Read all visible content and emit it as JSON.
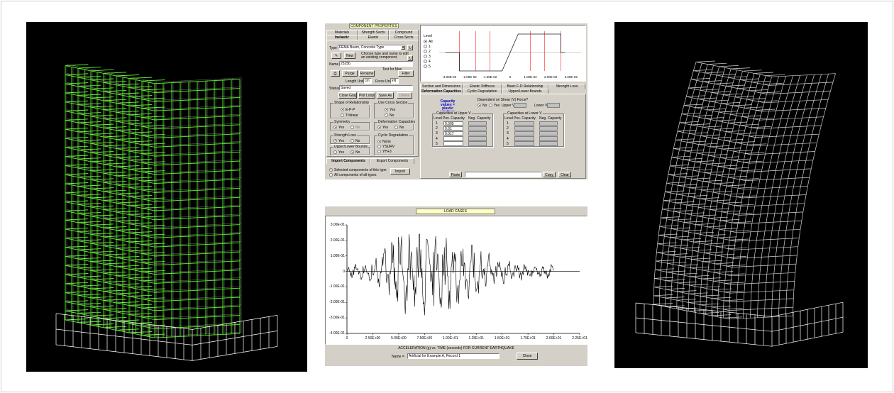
{
  "component_properties": {
    "title": "COMPONENT PROPERTIES",
    "tabs_row1": [
      "Materials",
      "Strength Sects",
      "Compound"
    ],
    "tabs_row2": [
      "Inelastic",
      "Elastic",
      "Cross Sects"
    ],
    "type_label": "Type",
    "type_value": "FEMA Beam, Concrete Type",
    "new_label": "New",
    "new_hint": "Choose type and name to edit an existing component.",
    "name_label": "Name",
    "name_value": "2525b",
    "test_for_max": "Test for Max",
    "purge": "Purge",
    "rename": "Rename",
    "filter": "Filter",
    "length_unit_label": "Length Unit",
    "length_unit_value": "cm",
    "force_unit_label": "Force Unit",
    "force_unit_value": "kN",
    "status_label": "Status",
    "status_value": "Saved",
    "close_graph": "Close Graph",
    "plot_loops": "Plot Loops",
    "save_as": "Save As",
    "delete": "Delete",
    "shape_group": "Shape of Relationship",
    "shape_opt1": "E-P-P",
    "shape_opt2": "Trilinear",
    "cross_group": "Use Cross Section",
    "cross_yes": "Yes",
    "cross_no": "No",
    "symmetry_group": "Symmetry",
    "sym_yes": "Yes",
    "sym_no": "No",
    "defcap_group": "Deformation Capacities",
    "dc_yes": "Yes",
    "dc_no": "No",
    "strloss_group": "Strength Loss",
    "sl_yes": "Yes",
    "sl_no": "No",
    "cyclic_group": "Cyclic Degradation",
    "cd_none": "None",
    "cd_ysurv": "YSURV",
    "cd_yh": "YH+3",
    "ulb_group": "Upper/Lower Bounds",
    "ulb_yes": "Yes",
    "ulb_no": "No",
    "import_tab": "Import Components",
    "export_tab": "Export Components",
    "import_opt1": "Selected components of this type",
    "import_opt2": "All components of all types",
    "import_btn": "Import",
    "level_label": "Level",
    "levels": [
      "All",
      "1",
      "2",
      "3",
      "4",
      "5"
    ],
    "graph_ticks": [
      "-3.00E-02",
      "-2.00E-02",
      "-1.00E-02",
      "0",
      "1.00E-02",
      "2.00E-02",
      "3.00E-02"
    ],
    "rtabs_row1": [
      "Section and Dimensions",
      "Elastic Stiffness",
      "Basic F-D Relationship",
      "Strength Loss"
    ],
    "rtabs_row2": [
      "Deformation Capacities",
      "Cyclic Degradation",
      "Upper/Lower Bounds"
    ],
    "capacity_title": "Capacity values = plastic rotations",
    "dependent_label": "Dependent on Shear (V) Force?",
    "dep_no": "No",
    "dep_yes": "Yes",
    "upper_v": "Upper V",
    "lower_v": "Lower V",
    "cap_upper_title": "Capacities at Upper V",
    "cap_lower_title": "Capacities at Lower V",
    "col_level": "Level",
    "col_pos": "Pos. Capacity",
    "col_neg": "Neg. Capacity",
    "rows": [
      "1",
      "2",
      "3",
      "4",
      "5"
    ],
    "upper_pos_values": [
      "0.005",
      "0.01",
      "0.017",
      "",
      ""
    ],
    "paste": "Paste",
    "copy": "Copy",
    "clear": "Clear"
  },
  "load_cases": {
    "title": "LOAD CASES",
    "y_ticks": [
      "3.00E-01",
      "2.00E-01",
      "1.00E-01",
      "0",
      "-1.00E-01",
      "-2.00E-01",
      "-3.00E-01",
      "-4.00E-01"
    ],
    "x_ticks": [
      "0",
      "2.50E+00",
      "5.00E+00",
      "7.50E+00",
      "1.00E+01",
      "1.25E+01",
      "1.50E+01",
      "1.75E+01",
      "2.00E+01",
      "2.25E+01"
    ],
    "caption": "ACCELERATION (g) vs. TIME (seconds) FOR CURRENT EARTHQUAKE",
    "name_label": "Name =",
    "name_value": "Artificial for Example A, Record 1",
    "close": "Close"
  }
}
